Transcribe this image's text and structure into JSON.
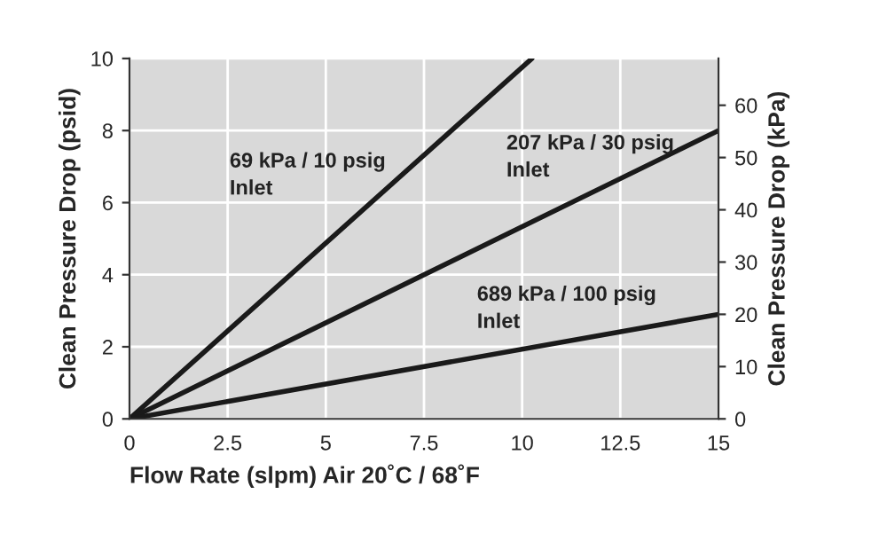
{
  "chart_data": {
    "type": "line",
    "xlabel": "Flow Rate (slpm) Air 20˚C / 68˚F",
    "ylabel": "Clean Pressure Drop (psid)",
    "y2label": "Clean Pressure Drop (kPa)",
    "series": [
      {
        "name": "69 kPa / 10 psig\nInlet",
        "color": "#1a1a1a",
        "x": [
          0,
          10.25
        ],
        "values": [
          0,
          10
        ]
      },
      {
        "name": "207 kPa / 30 psig\nInlet",
        "color": "#1a1a1a",
        "x": [
          0,
          15
        ],
        "values": [
          0,
          8
        ]
      },
      {
        "name": "689 kPa / 100 psig\nInlet",
        "color": "#1a1a1a",
        "x": [
          0,
          15
        ],
        "values": [
          0,
          2.9
        ]
      }
    ],
    "xlim": [
      0,
      15
    ],
    "xticks": [
      0,
      2.5,
      5,
      7.5,
      10,
      12.5,
      15
    ],
    "ylim": [
      0,
      10
    ],
    "yticks": [
      0,
      2,
      4,
      6,
      8,
      10
    ],
    "y2lim": [
      0,
      68.95
    ],
    "y2ticks": [
      0,
      10,
      20,
      30,
      40,
      50,
      60
    ],
    "grid": true,
    "legend": false,
    "marker": "none",
    "line_style": "solid"
  }
}
